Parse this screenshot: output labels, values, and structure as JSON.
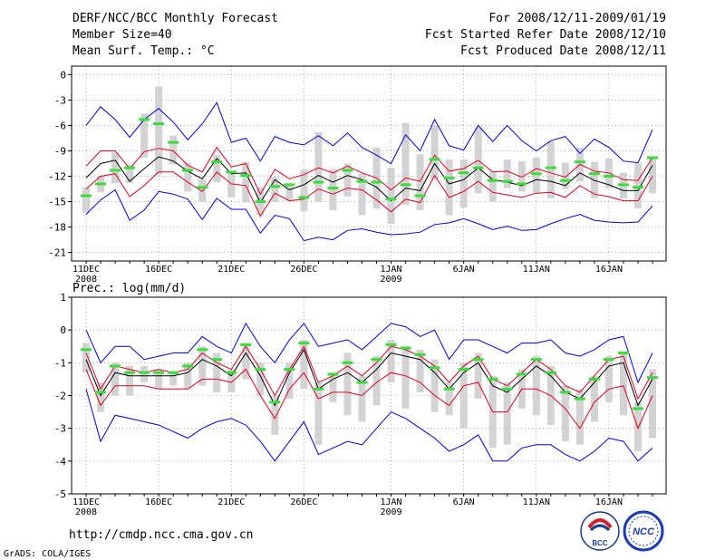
{
  "header": {
    "title": "DERF/NCC/BCC Monthly Forecast",
    "member_size": "Member Size=40",
    "for_range": "For 2008/12/11-2009/01/19",
    "started": "Fcst Started Refer Date 2008/12/10",
    "produced": "Fcst Produced Date 2008/12/11"
  },
  "footer": {
    "url": "http://cmdp.ncc.cma.gov.cn",
    "credit": "GrADS: COLA/IGES",
    "logo_bcc": "BCC",
    "logo_ncc": "NCC"
  },
  "colors": {
    "box": "#d3d3d6",
    "ensemble_mean": "#000000",
    "inner_band": "#e0001e",
    "outer_band": "#0000d8",
    "median": "#3cdc3c"
  },
  "chart_data": [
    {
      "type": "box",
      "title": "Mean Surf. Temp.: °C",
      "xlabel": "",
      "ylabel": "",
      "ylim": [
        -22,
        1
      ],
      "yticks": [
        0,
        -3,
        -6,
        -9,
        -12,
        -15,
        -18,
        -21
      ],
      "ytick_labels": [
        "0",
        "-3",
        "-6",
        "-9",
        "-12",
        "-15",
        "-18",
        "-21"
      ],
      "grid": true,
      "x_ticks": [
        {
          "day": 1,
          "label": "11DEC",
          "sub": "2008"
        },
        {
          "day": 6,
          "label": "16DEC"
        },
        {
          "day": 11,
          "label": "21DEC"
        },
        {
          "day": 16,
          "label": "26DEC"
        },
        {
          "day": 22,
          "label": "1JAN",
          "sub": "2009"
        },
        {
          "day": 27,
          "label": "6JAN"
        },
        {
          "day": 32,
          "label": "11JAN"
        },
        {
          "day": 37,
          "label": "16JAN"
        }
      ],
      "days": [
        1,
        2,
        3,
        4,
        5,
        6,
        7,
        8,
        9,
        10,
        11,
        12,
        13,
        14,
        15,
        16,
        17,
        18,
        19,
        20,
        21,
        22,
        23,
        24,
        25,
        26,
        27,
        28,
        29,
        30,
        31,
        32,
        33,
        34,
        35,
        36,
        37,
        38,
        39,
        40
      ],
      "box_top": [
        -13.3,
        -11.9,
        -9.2,
        -10.6,
        -4.6,
        -1.4,
        -7.2,
        -10.4,
        -12.4,
        -9.5,
        -11.7,
        -10.3,
        -13.3,
        -12.1,
        -12.9,
        -11.2,
        -6.8,
        -11.2,
        -10.5,
        -11.7,
        -8.6,
        -11.0,
        -5.7,
        -9.4,
        -6.0,
        -10.0,
        -10.0,
        -6.2,
        -11.4,
        -10.0,
        -10.2,
        -9.8,
        -7.9,
        -10.4,
        -8.6,
        -10.3,
        -9.9,
        -11.6,
        -10.4,
        -9.7
      ],
      "box_bottom": [
        -16.3,
        -13.9,
        -12.8,
        -12.8,
        -9.8,
        -11.8,
        -10.6,
        -13.8,
        -15.0,
        -12.7,
        -14.5,
        -15.1,
        -16.6,
        -15.0,
        -14.9,
        -16.1,
        -15.0,
        -16.0,
        -14.4,
        -16.6,
        -15.8,
        -17.6,
        -15.4,
        -16.0,
        -12.4,
        -16.6,
        -15.7,
        -14.0,
        -15.0,
        -13.4,
        -13.8,
        -14.0,
        -14.6,
        -13.5,
        -12.6,
        -14.6,
        -13.4,
        -14.6,
        -15.8,
        -14.0
      ],
      "median": [
        -14.3,
        -12.9,
        -11.3,
        -11.0,
        -5.3,
        -5.8,
        -8.0,
        -11.3,
        -13.3,
        -10.3,
        -11.5,
        -11.9,
        -15.0,
        -13.2,
        -13.0,
        -14.5,
        -12.7,
        -13.4,
        -11.3,
        -12.6,
        -12.7,
        -14.7,
        -13.0,
        -14.3,
        -10.0,
        -12.2,
        -11.6,
        -11.0,
        -12.5,
        -12.6,
        -12.9,
        -11.7,
        -11.0,
        -12.5,
        -10.3,
        -11.7,
        -12.0,
        -13.0,
        -13.3,
        -9.8
      ],
      "series": [
        {
          "name": "outer-upper",
          "values": [
            -6.0,
            -3.8,
            -5.3,
            -7.4,
            -5.3,
            -4.0,
            -5.6,
            -7.7,
            -5.8,
            -3.3,
            -8.0,
            -7.5,
            -10.2,
            -7.3,
            -8.0,
            -8.3,
            -7.2,
            -8.4,
            -6.9,
            -8.6,
            -9.5,
            -10.5,
            -7.1,
            -9.0,
            -5.3,
            -8.4,
            -8.9,
            -6.0,
            -7.9,
            -6.0,
            -7.8,
            -9.0,
            -7.8,
            -7.3,
            -9.3,
            -7.6,
            -8.6,
            -10.2,
            -10.4,
            -6.5
          ]
        },
        {
          "name": "inner-upper",
          "values": [
            -10.8,
            -9.0,
            -9.0,
            -11.1,
            -9.1,
            -8.7,
            -9.0,
            -10.7,
            -11.5,
            -8.6,
            -10.9,
            -10.5,
            -14.1,
            -11.2,
            -12.3,
            -11.8,
            -11.0,
            -11.6,
            -10.8,
            -11.6,
            -12.2,
            -13.6,
            -12.2,
            -12.6,
            -9.5,
            -11.4,
            -11.1,
            -10.1,
            -11.5,
            -11.4,
            -12.1,
            -11.1,
            -11.6,
            -12.1,
            -10.6,
            -11.4,
            -11.6,
            -12.4,
            -12.5,
            -9.8
          ]
        },
        {
          "name": "mean",
          "values": [
            -12.2,
            -10.5,
            -10.1,
            -12.6,
            -11.1,
            -9.7,
            -10.2,
            -11.4,
            -12.3,
            -9.9,
            -11.7,
            -11.6,
            -15.1,
            -12.4,
            -13.6,
            -13.0,
            -11.9,
            -12.7,
            -11.9,
            -12.4,
            -13.3,
            -14.9,
            -13.4,
            -13.7,
            -10.5,
            -12.9,
            -12.4,
            -11.0,
            -12.4,
            -12.7,
            -13.1,
            -12.4,
            -12.6,
            -13.1,
            -11.6,
            -12.5,
            -13.0,
            -13.7,
            -13.7,
            -10.7
          ]
        },
        {
          "name": "inner-lower",
          "values": [
            -13.5,
            -12.0,
            -11.7,
            -14.4,
            -13.1,
            -11.5,
            -11.5,
            -12.7,
            -13.8,
            -11.5,
            -12.9,
            -13.1,
            -16.7,
            -14.0,
            -14.9,
            -14.7,
            -13.5,
            -14.1,
            -13.4,
            -13.6,
            -14.8,
            -16.2,
            -14.7,
            -15.1,
            -11.9,
            -14.5,
            -13.8,
            -12.6,
            -13.9,
            -14.2,
            -14.5,
            -14.0,
            -13.9,
            -14.5,
            -13.1,
            -14.1,
            -14.4,
            -14.9,
            -14.9,
            -12.0
          ]
        },
        {
          "name": "outer-lower",
          "values": [
            -16.5,
            -14.8,
            -13.6,
            -17.2,
            -16.0,
            -13.8,
            -14.1,
            -14.7,
            -17.1,
            -14.6,
            -15.9,
            -15.9,
            -18.7,
            -16.6,
            -17.0,
            -19.6,
            -19.2,
            -19.5,
            -18.4,
            -18.2,
            -18.6,
            -18.9,
            -18.8,
            -18.6,
            -17.7,
            -17.5,
            -17.0,
            -17.6,
            -18.3,
            -17.9,
            -18.4,
            -18.3,
            -17.6,
            -17.0,
            -16.5,
            -17.2,
            -17.4,
            -17.5,
            -17.4,
            -15.5
          ]
        }
      ]
    },
    {
      "type": "box",
      "title": "Prec.: log(mm/d)",
      "xlabel": "",
      "ylabel": "",
      "ylim": [
        -5,
        1
      ],
      "yticks": [
        1,
        0,
        -1,
        -2,
        -3,
        -4,
        -5
      ],
      "ytick_labels": [
        "1",
        "0",
        "-1",
        "-2",
        "-3",
        "-4",
        "-5"
      ],
      "grid": true,
      "x_ticks": [
        {
          "day": 1,
          "label": "11DEC",
          "sub": "2008"
        },
        {
          "day": 6,
          "label": "16DEC"
        },
        {
          "day": 11,
          "label": "21DEC"
        },
        {
          "day": 16,
          "label": "26DEC"
        },
        {
          "day": 22,
          "label": "1JAN",
          "sub": "2009"
        },
        {
          "day": 27,
          "label": "6JAN"
        },
        {
          "day": 32,
          "label": "11JAN"
        },
        {
          "day": 37,
          "label": "16JAN"
        }
      ],
      "days": [
        1,
        2,
        3,
        4,
        5,
        6,
        7,
        8,
        9,
        10,
        11,
        12,
        13,
        14,
        15,
        16,
        17,
        18,
        19,
        20,
        21,
        22,
        23,
        24,
        25,
        26,
        27,
        28,
        29,
        30,
        31,
        32,
        33,
        34,
        35,
        36,
        37,
        38,
        39,
        40
      ],
      "box_top": [
        -0.4,
        -1.6,
        -1.0,
        -1.1,
        -1.1,
        -1.2,
        -1.3,
        -1.0,
        -0.5,
        -0.7,
        -1.2,
        -0.4,
        -1.0,
        -2.0,
        -1.0,
        -0.3,
        -1.6,
        -1.3,
        -0.7,
        -1.4,
        -0.8,
        -0.3,
        -0.5,
        -0.6,
        -0.9,
        -1.6,
        -1.0,
        -0.7,
        -1.4,
        -1.6,
        -1.2,
        -0.8,
        -1.1,
        -1.7,
        -1.8,
        -1.4,
        -0.8,
        -0.7,
        -2.2,
        -1.2
      ],
      "box_bottom": [
        -1.3,
        -2.5,
        -2.0,
        -2.0,
        -1.6,
        -1.8,
        -1.7,
        -1.8,
        -1.7,
        -1.9,
        -1.9,
        -1.5,
        -2.0,
        -3.2,
        -2.1,
        -1.8,
        -3.5,
        -2.2,
        -2.6,
        -2.8,
        -2.3,
        -1.6,
        -2.4,
        -1.9,
        -2.5,
        -2.6,
        -3.0,
        -2.1,
        -3.6,
        -3.5,
        -2.4,
        -2.6,
        -2.9,
        -3.4,
        -3.5,
        -2.8,
        -2.2,
        -2.6,
        -3.7,
        -3.3
      ],
      "median": [
        -0.6,
        -1.9,
        -1.1,
        -1.3,
        -1.3,
        -1.3,
        -1.3,
        -1.1,
        -0.6,
        -0.9,
        -1.3,
        -0.45,
        -1.2,
        -2.2,
        -1.2,
        -0.4,
        -1.8,
        -1.35,
        -1.0,
        -1.6,
        -0.9,
        -0.45,
        -0.55,
        -0.75,
        -1.15,
        -1.8,
        -1.2,
        -0.9,
        -1.5,
        -1.8,
        -1.35,
        -0.9,
        -1.3,
        -1.9,
        -2.1,
        -1.5,
        -0.9,
        -0.7,
        -2.4,
        -1.45
      ],
      "series": [
        {
          "name": "outer-upper",
          "values": [
            0.0,
            -1.0,
            -0.5,
            -0.5,
            -0.9,
            -0.8,
            -0.7,
            -0.7,
            -0.2,
            -0.5,
            -0.7,
            0.2,
            -0.5,
            -1.0,
            -0.3,
            0.2,
            -0.5,
            -0.4,
            -0.3,
            -0.6,
            -0.2,
            0.2,
            0.1,
            -0.2,
            0.0,
            -0.9,
            -0.3,
            -0.3,
            -0.5,
            -0.7,
            -0.4,
            -0.4,
            -0.3,
            -0.7,
            -0.8,
            -0.6,
            -0.3,
            -0.2,
            -1.6,
            -0.7
          ]
        },
        {
          "name": "inner-upper",
          "values": [
            -0.7,
            -1.8,
            -1.1,
            -1.2,
            -1.3,
            -1.2,
            -1.3,
            -1.2,
            -0.7,
            -1.0,
            -1.2,
            -0.5,
            -1.2,
            -2.0,
            -1.2,
            -0.5,
            -1.6,
            -1.4,
            -1.1,
            -1.4,
            -1.0,
            -0.5,
            -0.6,
            -0.8,
            -1.1,
            -1.6,
            -1.1,
            -0.8,
            -1.5,
            -1.7,
            -1.3,
            -0.9,
            -1.2,
            -1.7,
            -1.9,
            -1.4,
            -0.9,
            -0.8,
            -2.1,
            -1.3
          ]
        },
        {
          "name": "mean",
          "values": [
            -0.9,
            -2.0,
            -1.3,
            -1.4,
            -1.4,
            -1.4,
            -1.4,
            -1.3,
            -0.9,
            -1.1,
            -1.4,
            -0.7,
            -1.4,
            -2.3,
            -1.3,
            -0.6,
            -1.8,
            -1.5,
            -1.3,
            -1.6,
            -1.2,
            -0.7,
            -0.8,
            -0.9,
            -1.3,
            -1.8,
            -1.3,
            -1.0,
            -1.7,
            -1.9,
            -1.5,
            -1.1,
            -1.4,
            -1.9,
            -2.1,
            -1.6,
            -1.1,
            -1.0,
            -2.3,
            -1.5
          ]
        },
        {
          "name": "inner-lower",
          "values": [
            -1.2,
            -2.3,
            -1.7,
            -1.7,
            -1.7,
            -1.8,
            -1.8,
            -1.8,
            -1.5,
            -1.5,
            -1.6,
            -1.2,
            -2.0,
            -2.7,
            -1.8,
            -1.3,
            -2.1,
            -1.9,
            -1.9,
            -2.0,
            -1.6,
            -1.3,
            -1.4,
            -1.6,
            -2.0,
            -2.3,
            -1.7,
            -1.6,
            -2.5,
            -2.5,
            -1.8,
            -1.8,
            -2.0,
            -2.4,
            -3.0,
            -2.2,
            -1.8,
            -1.7,
            -3.0,
            -2.0
          ]
        },
        {
          "name": "outer-lower",
          "values": [
            -1.8,
            -3.4,
            -2.6,
            -2.7,
            -2.8,
            -2.9,
            -3.1,
            -3.3,
            -3.0,
            -2.8,
            -2.7,
            -2.9,
            -3.4,
            -4.0,
            -3.4,
            -2.8,
            -3.8,
            -3.6,
            -3.4,
            -3.5,
            -3.0,
            -2.5,
            -2.7,
            -3.0,
            -3.3,
            -3.7,
            -3.5,
            -3.2,
            -4.0,
            -4.0,
            -3.6,
            -3.5,
            -3.5,
            -3.8,
            -4.0,
            -3.7,
            -3.3,
            -3.4,
            -4.0,
            -3.6
          ]
        }
      ]
    }
  ]
}
